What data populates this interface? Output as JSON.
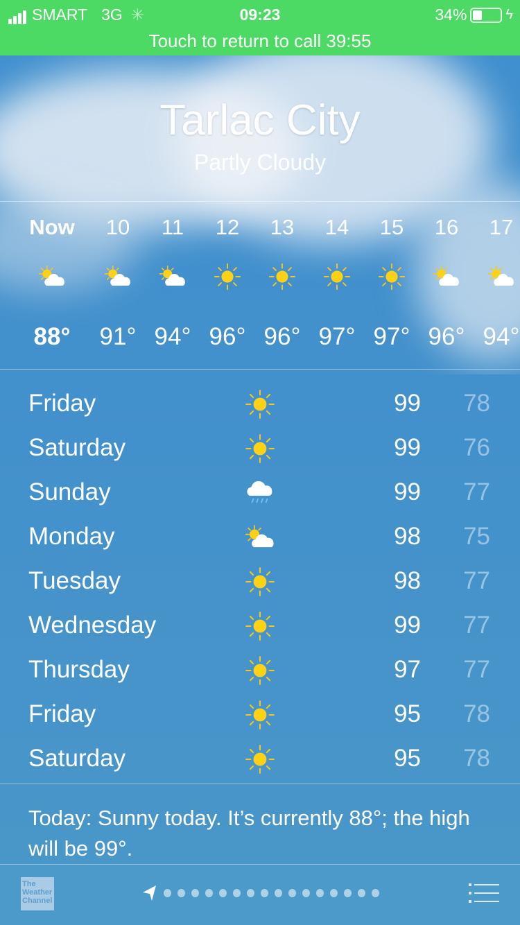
{
  "status": {
    "carrier": "SMART",
    "network": "3G",
    "time": "09:23",
    "battery": "34%",
    "battery_level": 0.34,
    "call_banner": "Touch to return to call 39:55",
    "bar_color": "#4cd964"
  },
  "location": {
    "city": "Tarlac City",
    "condition": "Partly Cloudy"
  },
  "hourly": [
    {
      "time": "Now",
      "icon": "partly-cloudy-icon",
      "temp": "88°"
    },
    {
      "time": "10",
      "icon": "partly-cloudy-icon",
      "temp": "91°"
    },
    {
      "time": "11",
      "icon": "partly-cloudy-icon",
      "temp": "94°"
    },
    {
      "time": "12",
      "icon": "sun-icon",
      "temp": "96°"
    },
    {
      "time": "13",
      "icon": "sun-icon",
      "temp": "96°"
    },
    {
      "time": "14",
      "icon": "sun-icon",
      "temp": "97°"
    },
    {
      "time": "15",
      "icon": "sun-icon",
      "temp": "97°"
    },
    {
      "time": "16",
      "icon": "partly-cloudy-icon",
      "temp": "96°"
    },
    {
      "time": "17",
      "icon": "partly-cloudy-icon",
      "temp": "94°"
    }
  ],
  "daily": [
    {
      "day": "Friday",
      "icon": "sun-icon",
      "high": "99",
      "low": "78"
    },
    {
      "day": "Saturday",
      "icon": "sun-icon",
      "high": "99",
      "low": "76"
    },
    {
      "day": "Sunday",
      "icon": "rain-icon",
      "high": "99",
      "low": "77"
    },
    {
      "day": "Monday",
      "icon": "partly-cloudy-icon",
      "high": "98",
      "low": "75"
    },
    {
      "day": "Tuesday",
      "icon": "sun-icon",
      "high": "98",
      "low": "77"
    },
    {
      "day": "Wednesday",
      "icon": "sun-icon",
      "high": "99",
      "low": "77"
    },
    {
      "day": "Thursday",
      "icon": "sun-icon",
      "high": "97",
      "low": "77"
    },
    {
      "day": "Friday",
      "icon": "sun-icon",
      "high": "95",
      "low": "78"
    },
    {
      "day": "Saturday",
      "icon": "sun-icon",
      "high": "95",
      "low": "78"
    }
  ],
  "summary": "Today: Sunny today. It’s currently 88°; the high will be 99°.",
  "footer": {
    "logo": "The Weather Channel",
    "page_count": 16
  }
}
